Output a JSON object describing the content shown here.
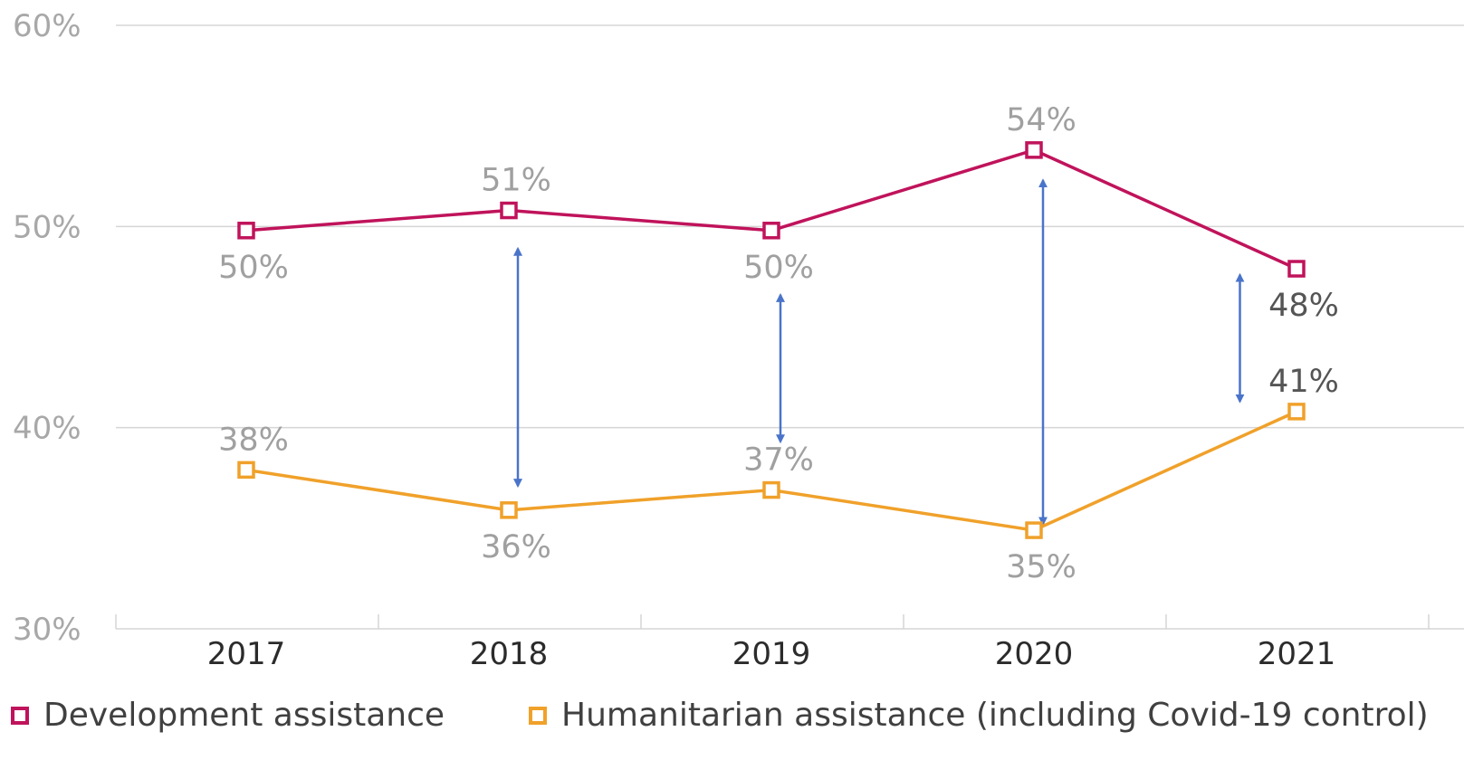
{
  "colors": {
    "development": "#c0135b",
    "humanitarian": "#f0a12a",
    "arrow": "#4a74c9",
    "grid": "#d5d5d5",
    "label_faded": "#a0a0a0",
    "label_dark": "#555555"
  },
  "chart_data": {
    "type": "line",
    "categories": [
      "2017",
      "2018",
      "2019",
      "2020",
      "2021"
    ],
    "ylim": [
      30,
      60
    ],
    "yticks": [
      30,
      40,
      50,
      60
    ],
    "ytick_labels": [
      "30%",
      "40%",
      "50%",
      "60%"
    ],
    "grid": true,
    "legend_position": "bottom",
    "series": [
      {
        "name": "Development assistance",
        "key": "development",
        "values": [
          49.8,
          50.8,
          49.8,
          53.8,
          47.9
        ],
        "labels": [
          "50%",
          "51%",
          "50%",
          "54%",
          "48%"
        ],
        "label_pos": [
          "below",
          "above",
          "below",
          "above",
          "below"
        ]
      },
      {
        "name": "Humanitarian assistance (including Covid-19 control)",
        "key": "humanitarian",
        "values": [
          37.9,
          35.9,
          36.9,
          34.9,
          40.8
        ],
        "labels": [
          "38%",
          "36%",
          "37%",
          "35%",
          "41%"
        ],
        "label_pos": [
          "above",
          "below",
          "above",
          "below",
          "above"
        ]
      }
    ],
    "gap_arrows": [
      {
        "category": "2018",
        "from": 37.1,
        "to": 48.9
      },
      {
        "category": "2019",
        "from": 39.3,
        "to": 46.6
      },
      {
        "category": "2020",
        "from": 35.2,
        "to": 52.3
      },
      {
        "category": "2021",
        "from": 41.3,
        "to": 47.6,
        "offset": -0.25
      }
    ]
  },
  "legend": {
    "development_label": "Development assistance",
    "humanitarian_label": "Humanitarian assistance (including Covid-19 control)"
  }
}
